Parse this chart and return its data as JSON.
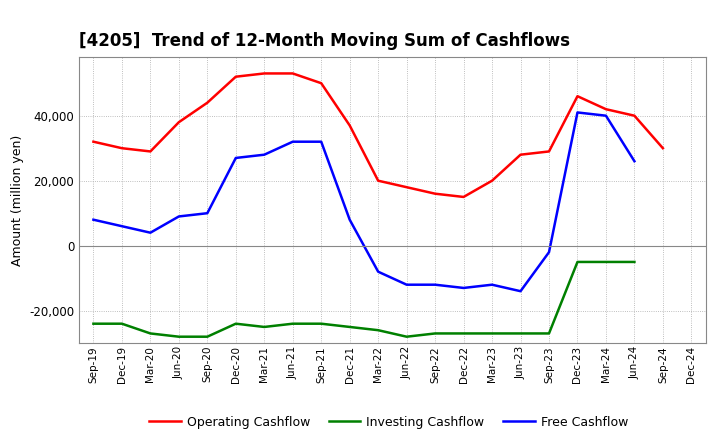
{
  "title": "[4205]  Trend of 12-Month Moving Sum of Cashflows",
  "ylabel": "Amount (million yen)",
  "x_labels": [
    "Sep-19",
    "Dec-19",
    "Mar-20",
    "Jun-20",
    "Sep-20",
    "Dec-20",
    "Mar-21",
    "Jun-21",
    "Sep-21",
    "Dec-21",
    "Mar-22",
    "Jun-22",
    "Sep-22",
    "Dec-22",
    "Mar-23",
    "Jun-23",
    "Sep-23",
    "Dec-23",
    "Mar-24",
    "Jun-24",
    "Sep-24",
    "Dec-24"
  ],
  "operating": [
    32000,
    30000,
    29000,
    38000,
    44000,
    52000,
    53000,
    53000,
    50000,
    37000,
    20000,
    18000,
    16000,
    15000,
    20000,
    28000,
    29000,
    46000,
    42000,
    40000,
    30000,
    null
  ],
  "investing": [
    -24000,
    -24000,
    -27000,
    -28000,
    -28000,
    -24000,
    -25000,
    -24000,
    -24000,
    -25000,
    -26000,
    -28000,
    -27000,
    -27000,
    -27000,
    -27000,
    -27000,
    -5000,
    -5000,
    -5000,
    null,
    null
  ],
  "free": [
    8000,
    6000,
    4000,
    9000,
    10000,
    27000,
    28000,
    32000,
    32000,
    8000,
    -8000,
    -12000,
    -12000,
    -13000,
    -12000,
    -14000,
    -2000,
    41000,
    40000,
    26000,
    null,
    null
  ],
  "ylim": [
    -30000,
    58000
  ],
  "yticks": [
    -20000,
    0,
    20000,
    40000
  ],
  "line_colors": {
    "operating": "#FF0000",
    "investing": "#008000",
    "free": "#0000FF"
  },
  "background_color": "#FFFFFF",
  "grid_color": "#AAAAAA",
  "legend_labels": [
    "Operating Cashflow",
    "Investing Cashflow",
    "Free Cashflow"
  ]
}
